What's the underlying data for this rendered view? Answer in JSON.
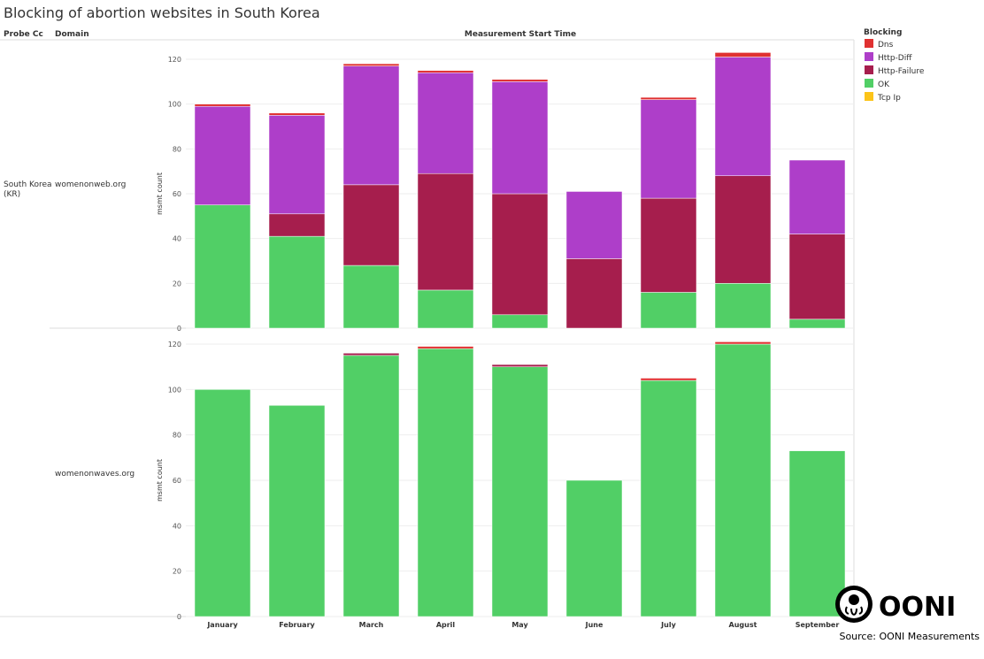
{
  "chart_data": {
    "type": "bar",
    "stacked": true,
    "title": "Blocking of abortion websites in South Korea",
    "row_headers": [
      "Probe Cc",
      "Domain"
    ],
    "column_header": "Measurement Start Time",
    "probe_cc": "South Korea (KR)",
    "ylabel": "msmt count",
    "ylim": [
      0,
      125
    ],
    "yticks": [
      0,
      20,
      40,
      60,
      80,
      100,
      120
    ],
    "grid": true,
    "categories": [
      "January",
      "February",
      "March",
      "April",
      "May",
      "June",
      "July",
      "August",
      "September"
    ],
    "legend": {
      "title": "Blocking",
      "placement": "right",
      "entries": [
        {
          "name": "Dns",
          "color": "#e03131"
        },
        {
          "name": "Http-Diff",
          "color": "#ae3ec9"
        },
        {
          "name": "Http-Failure",
          "color": "#a61e4d"
        },
        {
          "name": "OK",
          "color": "#51cf66"
        },
        {
          "name": "Tcp Ip",
          "color": "#fcc419"
        }
      ]
    },
    "panels": [
      {
        "domain": "womenonweb.org",
        "series": [
          {
            "name": "OK",
            "values": [
              55,
              41,
              28,
              17,
              6,
              0,
              16,
              20,
              4
            ]
          },
          {
            "name": "Http-Failure",
            "values": [
              0,
              10,
              36,
              52,
              54,
              31,
              42,
              48,
              38
            ]
          },
          {
            "name": "Http-Diff",
            "values": [
              44,
              44,
              53,
              45,
              50,
              30,
              44,
              53,
              33
            ]
          },
          {
            "name": "Dns",
            "values": [
              1,
              1,
              1,
              1,
              1,
              0,
              1,
              2,
              0
            ]
          },
          {
            "name": "Tcp Ip",
            "values": [
              0,
              0,
              0,
              0,
              0,
              0,
              0,
              0,
              0
            ]
          }
        ]
      },
      {
        "domain": "womenonwaves.org",
        "series": [
          {
            "name": "OK",
            "values": [
              100,
              93,
              115,
              118,
              110,
              60,
              104,
              120,
              73
            ]
          },
          {
            "name": "Http-Failure",
            "values": [
              0,
              0,
              1,
              0,
              1,
              0,
              0,
              0,
              0
            ]
          },
          {
            "name": "Http-Diff",
            "values": [
              0,
              0,
              0,
              0,
              0,
              0,
              0,
              0,
              0
            ]
          },
          {
            "name": "Dns",
            "values": [
              0,
              0,
              0,
              1,
              0,
              0,
              1,
              1,
              0
            ]
          },
          {
            "name": "Tcp Ip",
            "values": [
              0,
              0,
              0,
              0,
              0,
              0,
              0,
              0,
              0
            ]
          }
        ]
      }
    ]
  },
  "source": "Source: OONI Measurements",
  "logo": "OONI"
}
